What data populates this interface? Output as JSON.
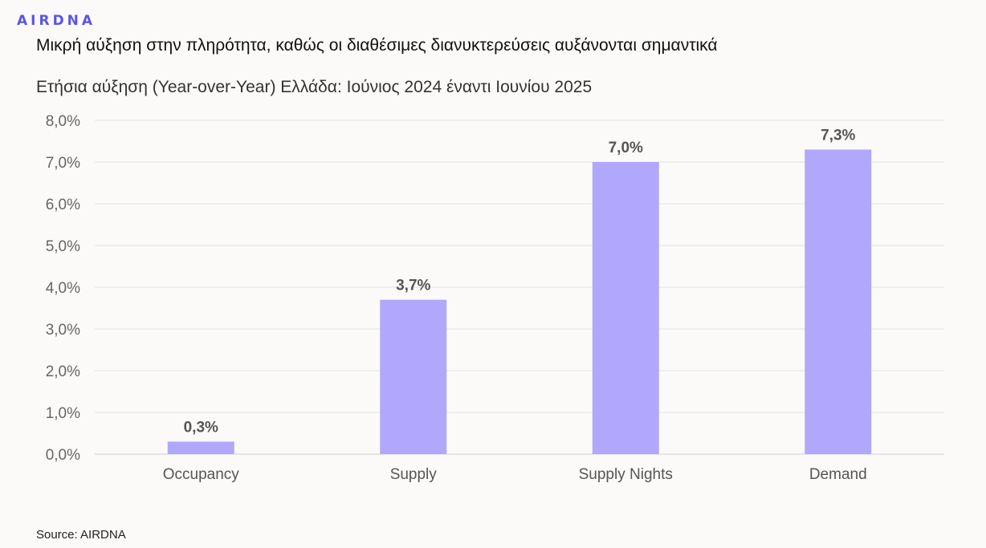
{
  "brand": {
    "logo_text": "AIRDNA",
    "accent": "#5b55e8"
  },
  "headline": "Μικρή αύξηση στην πληρότητα, καθώς οι διαθέσιμες διανυκτερεύσεις αυξάνονται σημαντικά",
  "subtitle": "Ετήσια αύξηση (Year-over-Year) Ελλάδα: Ιούνιος 2024 έναντι Ιουνίου 2025",
  "source": "Source: AIRDNA",
  "chart_data": {
    "type": "bar",
    "title": "Ετήσια αύξηση (Year-over-Year) Ελλάδα: Ιούνιος 2024 έναντι Ιουνίου 2025",
    "categories": [
      "Occupancy",
      "Supply",
      "Supply Nights",
      "Demand"
    ],
    "values": [
      0.3,
      3.7,
      7.0,
      7.3
    ],
    "data_labels": [
      "0,3%",
      "3,7%",
      "7,0%",
      "7,3%"
    ],
    "yticks": [
      "0,0%",
      "1,0%",
      "2,0%",
      "3,0%",
      "4,0%",
      "5,0%",
      "6,0%",
      "7,0%",
      "8,0%"
    ],
    "ylim": [
      0,
      8
    ],
    "bar_color": "#b1a8fc",
    "grid": true,
    "legend": "none"
  }
}
